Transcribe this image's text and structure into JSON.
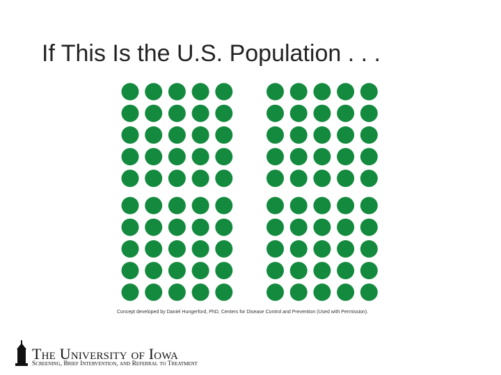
{
  "slide": {
    "title": "If This Is the U.S. Population . . .",
    "caption": "Concept developed by Daniel Hungerford, PhD, Centers for Disease Control and Prevention (Used with Permission)."
  },
  "footer": {
    "logo_name": "The University of Iowa",
    "logo_subtitle": "Screening, Brief Intervention, and Referral to Treatment"
  }
}
